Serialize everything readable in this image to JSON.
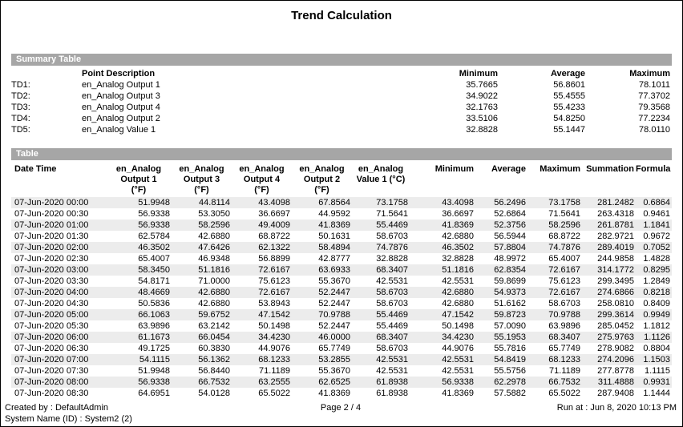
{
  "title": "Trend Calculation",
  "summary": {
    "section_label": "Summary Table",
    "columns": {
      "point_description": "Point Description",
      "minimum": "Minimum",
      "average": "Average",
      "maximum": "Maximum"
    },
    "rows": [
      {
        "id": "TD1:",
        "description": "en_Analog Output 1",
        "minimum": "35.7665",
        "average": "56.8601",
        "maximum": "78.1011"
      },
      {
        "id": "TD2:",
        "description": "en_Analog Output 3",
        "minimum": "34.9022",
        "average": "55.4555",
        "maximum": "77.3702"
      },
      {
        "id": "TD3:",
        "description": "en_Analog Output 4",
        "minimum": "32.1763",
        "average": "55.4233",
        "maximum": "79.3568"
      },
      {
        "id": "TD4:",
        "description": "en_Analog Output 2",
        "minimum": "33.5106",
        "average": "54.8250",
        "maximum": "77.2234"
      },
      {
        "id": "TD5:",
        "description": "en_Analog Value 1",
        "minimum": "32.8828",
        "average": "55.1447",
        "maximum": "78.0110"
      }
    ]
  },
  "table": {
    "section_label": "Table",
    "headers": [
      {
        "key": "date-time",
        "lines": [
          "Date Time"
        ]
      },
      {
        "key": "output-1",
        "lines": [
          "en_Analog",
          "Output 1",
          "(°F)"
        ]
      },
      {
        "key": "output-3",
        "lines": [
          "en_Analog",
          "Output 3",
          "(°F)"
        ]
      },
      {
        "key": "output-4",
        "lines": [
          "en_Analog",
          "Output 4",
          "(°F)"
        ]
      },
      {
        "key": "output-2",
        "lines": [
          "en_Analog",
          "Output 2",
          "(°F)"
        ]
      },
      {
        "key": "value-1",
        "lines": [
          "en_Analog",
          "Value 1 (°C)"
        ]
      },
      {
        "key": "minimum",
        "lines": [
          "Minimum"
        ]
      },
      {
        "key": "average",
        "lines": [
          "Average"
        ]
      },
      {
        "key": "maximum",
        "lines": [
          "Maximum"
        ]
      },
      {
        "key": "summation",
        "lines": [
          "Summation"
        ]
      },
      {
        "key": "formula",
        "lines": [
          "Formula"
        ]
      }
    ],
    "rows": [
      [
        "07-Jun-2020 00:00",
        "51.9948",
        "44.8114",
        "43.4098",
        "67.8564",
        "73.1758",
        "43.4098",
        "56.2496",
        "73.1758",
        "281.2482",
        "0.6864"
      ],
      [
        "07-Jun-2020 00:30",
        "56.9338",
        "53.3050",
        "36.6697",
        "44.9592",
        "71.5641",
        "36.6697",
        "52.6864",
        "71.5641",
        "263.4318",
        "0.9461"
      ],
      [
        "07-Jun-2020 01:00",
        "56.9338",
        "58.2596",
        "49.4009",
        "41.8369",
        "55.4469",
        "41.8369",
        "52.3756",
        "58.2596",
        "261.8781",
        "1.1841"
      ],
      [
        "07-Jun-2020 01:30",
        "62.5784",
        "42.6880",
        "68.8722",
        "50.1631",
        "58.6703",
        "42.6880",
        "56.5944",
        "68.8722",
        "282.9721",
        "0.9672"
      ],
      [
        "07-Jun-2020 02:00",
        "46.3502",
        "47.6426",
        "62.1322",
        "58.4894",
        "74.7876",
        "46.3502",
        "57.8804",
        "74.7876",
        "289.4019",
        "0.7052"
      ],
      [
        "07-Jun-2020 02:30",
        "65.4007",
        "46.9348",
        "56.8899",
        "42.8777",
        "32.8828",
        "32.8828",
        "48.9972",
        "65.4007",
        "244.9858",
        "1.4828"
      ],
      [
        "07-Jun-2020 03:00",
        "58.3450",
        "51.1816",
        "72.6167",
        "63.6933",
        "68.3407",
        "51.1816",
        "62.8354",
        "72.6167",
        "314.1772",
        "0.8295"
      ],
      [
        "07-Jun-2020 03:30",
        "54.8171",
        "71.0000",
        "75.6123",
        "55.3670",
        "42.5531",
        "42.5531",
        "59.8699",
        "75.6123",
        "299.3495",
        "1.2849"
      ],
      [
        "07-Jun-2020 04:00",
        "48.4669",
        "42.6880",
        "72.6167",
        "52.2447",
        "58.6703",
        "42.6880",
        "54.9373",
        "72.6167",
        "274.6866",
        "0.8218"
      ],
      [
        "07-Jun-2020 04:30",
        "50.5836",
        "42.6880",
        "53.8943",
        "52.2447",
        "58.6703",
        "42.6880",
        "51.6162",
        "58.6703",
        "258.0810",
        "0.8409"
      ],
      [
        "07-Jun-2020 05:00",
        "66.1063",
        "59.6752",
        "47.1542",
        "70.9788",
        "55.4469",
        "47.1542",
        "59.8723",
        "70.9788",
        "299.3614",
        "0.9949"
      ],
      [
        "07-Jun-2020 05:30",
        "63.9896",
        "63.2142",
        "50.1498",
        "52.2447",
        "55.4469",
        "50.1498",
        "57.0090",
        "63.9896",
        "285.0452",
        "1.1812"
      ],
      [
        "07-Jun-2020 06:00",
        "61.1673",
        "66.0454",
        "34.4230",
        "46.0000",
        "68.3407",
        "34.4230",
        "55.1953",
        "68.3407",
        "275.9763",
        "1.1126"
      ],
      [
        "07-Jun-2020 06:30",
        "49.1725",
        "60.3830",
        "44.9076",
        "65.7749",
        "58.6703",
        "44.9076",
        "55.7816",
        "65.7749",
        "278.9082",
        "0.8804"
      ],
      [
        "07-Jun-2020 07:00",
        "54.1115",
        "56.1362",
        "68.1233",
        "53.2855",
        "42.5531",
        "42.5531",
        "54.8419",
        "68.1233",
        "274.2096",
        "1.1503"
      ],
      [
        "07-Jun-2020 07:30",
        "51.9948",
        "56.8440",
        "71.1189",
        "55.3670",
        "42.5531",
        "42.5531",
        "55.5756",
        "71.1189",
        "277.8778",
        "1.1115"
      ],
      [
        "07-Jun-2020 08:00",
        "56.9338",
        "66.7532",
        "63.2555",
        "62.6525",
        "61.8938",
        "56.9338",
        "62.2978",
        "66.7532",
        "311.4888",
        "0.9931"
      ],
      [
        "07-Jun-2020 08:30",
        "64.6951",
        "54.0128",
        "65.5022",
        "41.8369",
        "61.8938",
        "41.8369",
        "57.5882",
        "65.5022",
        "287.9408",
        "1.1444"
      ]
    ]
  },
  "footer": {
    "created_by": "Created by : DefaultAdmin",
    "system_name": "System Name (ID) : System2 (2)",
    "page": "Page 2 / 4",
    "run_at": "Run at : Jun 8, 2020 10:13 PM"
  },
  "colors": {
    "section_bar": "#a6a6a6",
    "row_stripe": "#ececec",
    "border": "#000000"
  }
}
